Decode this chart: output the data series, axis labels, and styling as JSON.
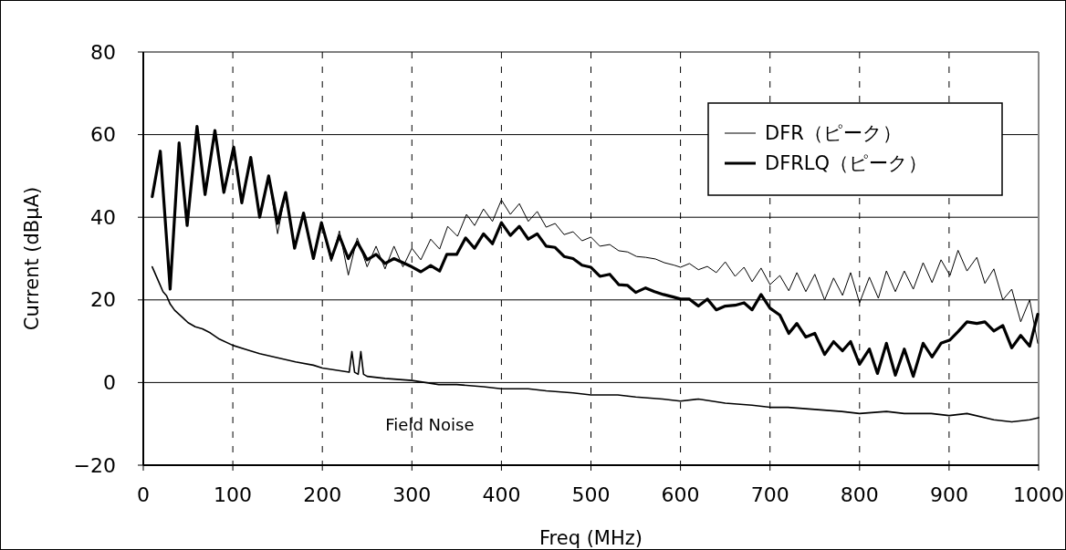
{
  "chart_data": {
    "type": "line",
    "xlabel": "Freq (MHz)",
    "ylabel": "Current (dBμA)",
    "xlim": [
      0,
      1000
    ],
    "ylim": [
      -20,
      80
    ],
    "xticks": [
      0,
      100,
      200,
      300,
      400,
      500,
      600,
      700,
      800,
      900,
      1000
    ],
    "yticks": [
      -20,
      0,
      20,
      40,
      60,
      80
    ],
    "grid": true,
    "legend": "top right",
    "line_style": "solid",
    "marker": "none",
    "annotations": [
      "Field Noise"
    ],
    "series": [
      {
        "name": "DFR（ピーク）",
        "color": "#000000",
        "x": [
          10,
          19,
          30,
          40,
          49,
          60,
          69,
          80,
          90,
          101,
          110,
          120,
          130,
          140,
          150,
          159,
          169,
          179,
          190,
          199,
          210,
          219,
          229,
          239,
          250,
          260,
          270,
          280,
          290,
          300,
          310,
          321,
          331,
          340,
          351,
          361,
          370,
          380,
          390,
          400,
          410,
          420,
          430,
          440,
          450,
          460,
          470,
          480,
          490,
          500,
          510,
          521,
          531,
          541,
          551,
          561,
          572,
          582,
          593,
          600,
          610,
          620,
          630,
          640,
          650,
          661,
          671,
          680,
          690,
          700,
          711,
          721,
          730,
          740,
          750,
          761,
          771,
          781,
          790,
          800,
          811,
          821,
          830,
          840,
          850,
          860,
          871,
          881,
          891,
          901,
          910,
          920,
          931,
          940,
          950,
          960,
          970,
          980,
          990,
          999
        ],
        "values": [
          45,
          56,
          24,
          58,
          38,
          62,
          45.5,
          61,
          46,
          57,
          43.5,
          54.5,
          40,
          50,
          36,
          46,
          32.5,
          41,
          30,
          38.7,
          29.3,
          36.7,
          26,
          35,
          28,
          33,
          27.5,
          33,
          28,
          32.5,
          29.7,
          34.7,
          32.3,
          37.8,
          35.4,
          40.7,
          38,
          42,
          39,
          44.2,
          40.7,
          43.3,
          39,
          41.4,
          37.6,
          38.5,
          35.8,
          36.5,
          34.3,
          35.2,
          33,
          33.4,
          31.9,
          31.6,
          30.5,
          30.3,
          29.9,
          29,
          28.4,
          27.9,
          28.8,
          27.3,
          28.1,
          26.6,
          29.2,
          25.7,
          27.9,
          24.4,
          27.7,
          23.7,
          25.9,
          22.2,
          26.6,
          22,
          26.2,
          20,
          25.3,
          21.1,
          26.6,
          19.3,
          25.5,
          20.4,
          27,
          22,
          27,
          22.6,
          29,
          24.2,
          29.7,
          25.9,
          32,
          27,
          30.3,
          24,
          27.5,
          20,
          22.6,
          14.7,
          20,
          9.5
        ]
      },
      {
        "name": "DFRLQ（ピーク）",
        "color": "#000000",
        "x": [
          10,
          19,
          30,
          40,
          49,
          60,
          69,
          80,
          90,
          101,
          110,
          120,
          130,
          140,
          150,
          159,
          169,
          179,
          190,
          199,
          210,
          219,
          229,
          239,
          250,
          260,
          270,
          280,
          290,
          300,
          310,
          321,
          331,
          339,
          350,
          360,
          370,
          380,
          390,
          400,
          410,
          420,
          430,
          440,
          450,
          460,
          470,
          480,
          490,
          500,
          510,
          521,
          531,
          541,
          550,
          561,
          571,
          581,
          592,
          600,
          610,
          620,
          630,
          640,
          650,
          661,
          671,
          680,
          690,
          700,
          711,
          721,
          730,
          740,
          750,
          761,
          771,
          781,
          790,
          800,
          811,
          820,
          830,
          840,
          850,
          860,
          871,
          881,
          891,
          901,
          910,
          920,
          931,
          940,
          950,
          960,
          970,
          980,
          990,
          999
        ],
        "values": [
          45,
          56,
          22.6,
          58,
          38,
          62,
          45.5,
          61,
          46,
          57,
          43.5,
          54.5,
          40,
          50,
          38.5,
          46,
          32.5,
          41,
          30,
          38.7,
          30,
          35.5,
          30,
          34,
          29.7,
          31,
          28.8,
          30,
          29,
          28,
          26.8,
          28.3,
          27,
          31,
          31,
          35,
          32.5,
          36,
          33.6,
          38.7,
          35.6,
          37.8,
          34.7,
          36,
          33,
          32.7,
          30.5,
          30,
          28.4,
          27.9,
          25.7,
          26.2,
          23.7,
          23.5,
          21.8,
          22.9,
          22,
          21.3,
          20.7,
          20.2,
          20.2,
          18.5,
          20.2,
          17.6,
          18.5,
          18.7,
          19.3,
          17.6,
          21.3,
          18,
          16.3,
          11.9,
          14.3,
          11,
          11.9,
          6.8,
          9.9,
          7.7,
          9.9,
          4.4,
          8.1,
          2.2,
          9.5,
          1.8,
          8.1,
          1.5,
          9.5,
          6.2,
          9.5,
          10.3,
          12.3,
          14.7,
          14.3,
          14.7,
          12.5,
          13.8,
          8.4,
          11.4,
          8.8,
          16.5
        ]
      },
      {
        "color": "#000000",
        "x": [
          10,
          14,
          18,
          22,
          26,
          30,
          35,
          40,
          45,
          50,
          58,
          66,
          75,
          85,
          100,
          115,
          130,
          150,
          170,
          190,
          200,
          215,
          230,
          233,
          236,
          240,
          243,
          246,
          250,
          270,
          300,
          330,
          350,
          380,
          400,
          430,
          450,
          480,
          500,
          530,
          550,
          580,
          600,
          620,
          650,
          680,
          700,
          720,
          750,
          780,
          800,
          830,
          850,
          880,
          900,
          920,
          950,
          970,
          990,
          1000
        ],
        "values": [
          28,
          26,
          24,
          22,
          21,
          19,
          17.5,
          16.5,
          15.5,
          14.5,
          13.5,
          13,
          12,
          10.5,
          9,
          8,
          7,
          6,
          5,
          4.2,
          3.5,
          3,
          2.5,
          7.5,
          2.5,
          2,
          7.5,
          2,
          1.5,
          1,
          0.5,
          -0.5,
          -0.5,
          -1,
          -1.5,
          -1.5,
          -2,
          -2.5,
          -3,
          -3,
          -3.5,
          -4,
          -4.5,
          -4,
          -5,
          -5.5,
          -6,
          -6,
          -6.5,
          -7,
          -7.5,
          -7,
          -7.5,
          -7.5,
          -8,
          -7.5,
          -9,
          -9.5,
          -9,
          -8.5
        ]
      }
    ]
  }
}
